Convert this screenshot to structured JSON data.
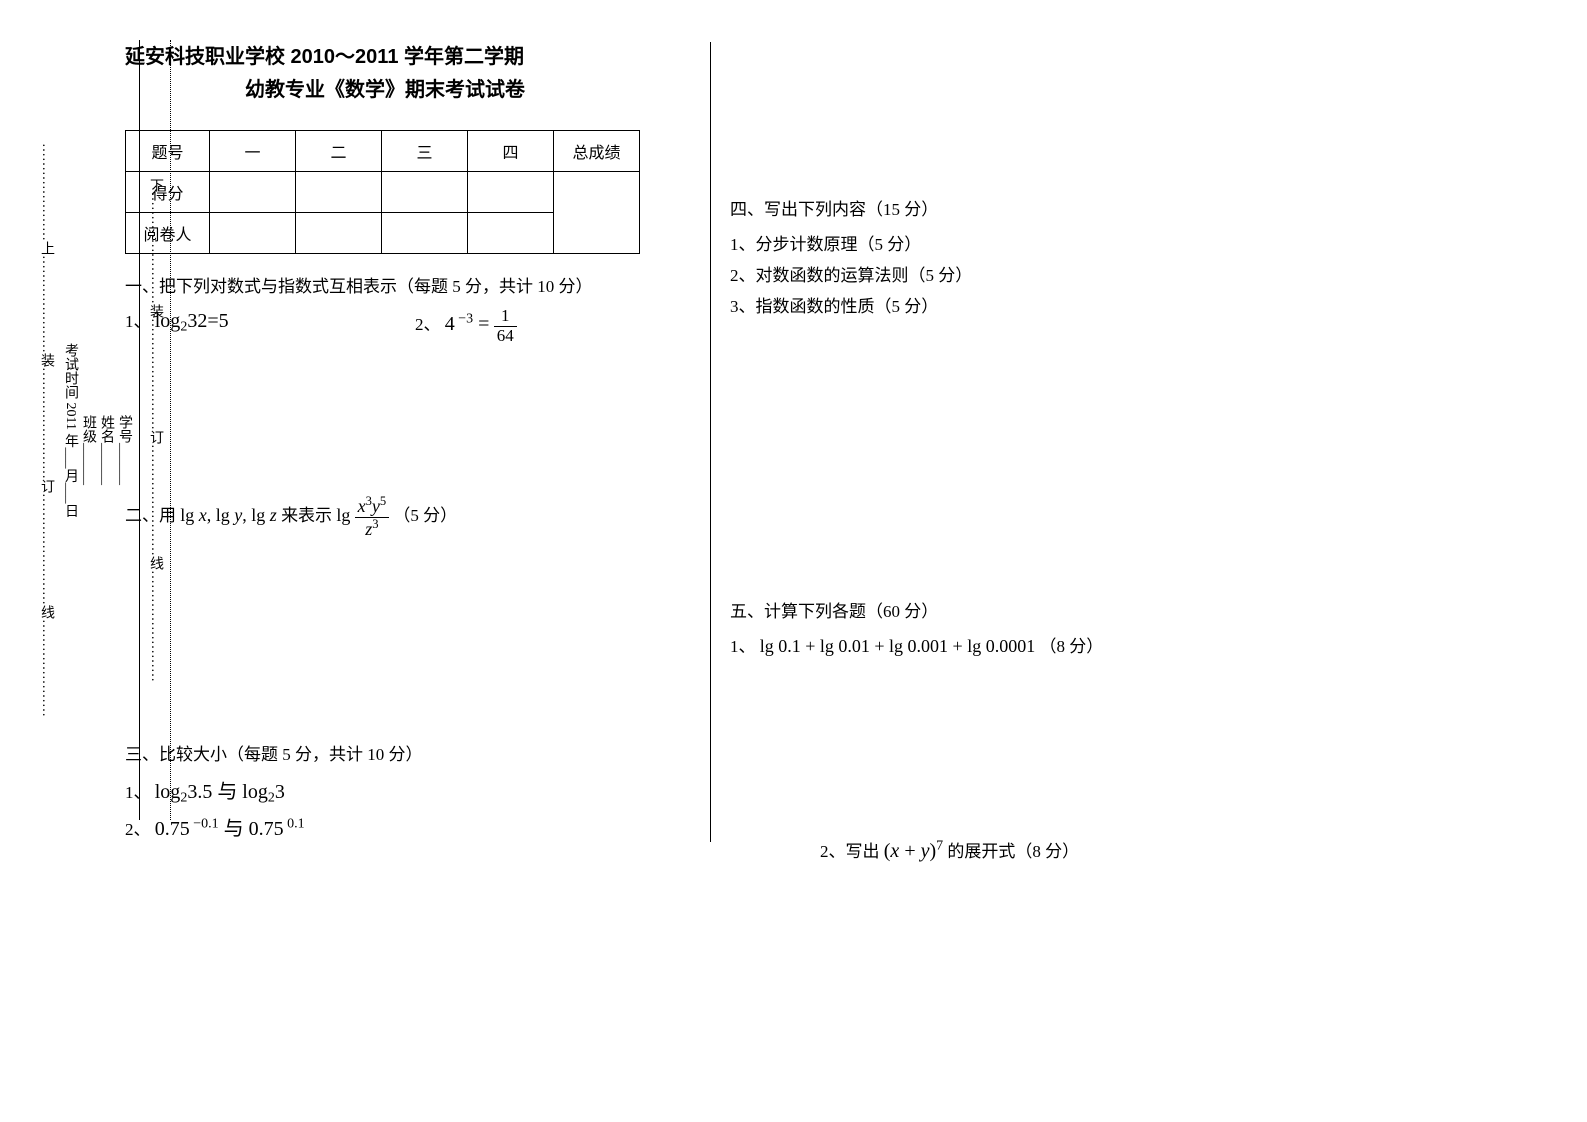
{
  "spine": {
    "outer_line": "…………………上…………………装……………………订……………………线…………………",
    "date_line": "考试时间 2011 年___月___日",
    "class_label": "班级______",
    "name_label": "姓名______",
    "id_label": "学号______",
    "inner_dot": "下……………………装……………………订……………………线……………………"
  },
  "header": {
    "line1": "延安科技职业学校 2010～2011 学年第二学期",
    "line2": "幼教专业《数学》期末考试试卷"
  },
  "score_table": {
    "row_labels": [
      "题号",
      "得分",
      "阅卷人"
    ],
    "cols": [
      "一",
      "二",
      "三",
      "四",
      "总成绩"
    ]
  },
  "s1": {
    "title": "一、把下列对数式与指数式互相表示（每题 5 分，共计 10 分）",
    "q1_pre": "1、",
    "q1_math": "log<sub>2</sub>32=5",
    "q2_pre": "2、",
    "q2_lhs": "4<sup> −3</sup> =",
    "q2_num": "1",
    "q2_den": "64"
  },
  "s2": {
    "title_pre": "二、用",
    "title_math": "lg <i>x</i>, lg <i>y</i>, lg <i>z</i>",
    "title_mid": " 来表示",
    "title_lg": "lg",
    "frac_num": "<i>x</i><sup>3</sup><i>y</i><sup>5</sup>",
    "frac_den": "<i>z</i><sup>3</sup>",
    "title_post": "（5 分）"
  },
  "s3": {
    "title": "三、比较大小（每题 5 分，共计 10 分）",
    "q1_pre": "1、",
    "q1_math": "log<sub>2</sub>3.5 与 log<sub>2</sub>3",
    "q2_pre": "2、",
    "q2_math": "0.75<sup> −0.1</sup> 与 0.75<sup> 0.1</sup>"
  },
  "s4": {
    "title": "四、写出下列内容（15 分）",
    "q1": "1、分步计数原理（5 分）",
    "q2": "2、对数函数的运算法则（5 分）",
    "q3": "3、指数函数的性质（5 分）"
  },
  "s5": {
    "title": "五、计算下列各题（60 分）",
    "q1_pre": "1、",
    "q1_math": "lg 0.1 + lg 0.01 + lg 0.001 + lg 0.0001",
    "q1_post": "（8 分）",
    "q2_pre": "2、写出",
    "q2_math": "(<i>x</i> + <i>y</i>)<sup>7</sup>",
    "q2_post": " 的展开式（8 分）"
  }
}
